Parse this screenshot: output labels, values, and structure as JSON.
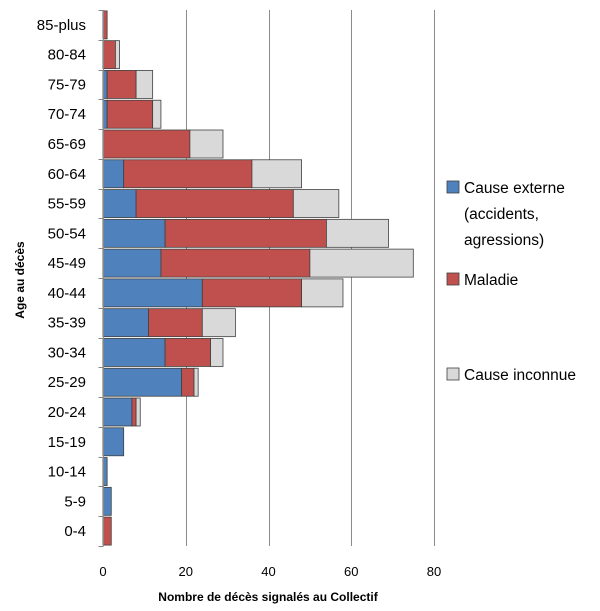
{
  "chart_data": {
    "type": "bar",
    "orientation": "horizontal",
    "stacked": true,
    "xlabel": "Nombre de décès signalés au Collectif",
    "ylabel": "Age au décès",
    "xlim": [
      0,
      80
    ],
    "xticks": [
      0,
      20,
      40,
      60,
      80
    ],
    "grid": true,
    "legend_position": "right",
    "categories": [
      "0-4",
      "5-9",
      "10-14",
      "15-19",
      "20-24",
      "25-29",
      "30-34",
      "35-39",
      "40-44",
      "45-49",
      "50-54",
      "55-59",
      "60-64",
      "65-69",
      "70-74",
      "75-79",
      "80-84",
      "85-plus"
    ],
    "series": [
      {
        "name": "Cause externe (accidents, agressions)",
        "legend_lines": [
          "Cause externe",
          "(accidents,",
          "agressions)"
        ],
        "color": "#4f81bd",
        "values": [
          0,
          2,
          1,
          5,
          7,
          19,
          15,
          11,
          24,
          14,
          15,
          8,
          5,
          0,
          1,
          1,
          0,
          0
        ]
      },
      {
        "name": "Maladie",
        "legend_lines": [
          "Maladie"
        ],
        "color": "#c0504d",
        "values": [
          2,
          0,
          0,
          0,
          1,
          3,
          11,
          13,
          24,
          36,
          39,
          38,
          31,
          21,
          11,
          7,
          3,
          1
        ]
      },
      {
        "name": "Cause inconnue",
        "legend_lines": [
          "Cause inconnue"
        ],
        "color": "#d9d9d9",
        "values": [
          0,
          0,
          0,
          0,
          1,
          1,
          3,
          8,
          10,
          25,
          15,
          11,
          12,
          8,
          2,
          4,
          1,
          0
        ]
      }
    ]
  }
}
